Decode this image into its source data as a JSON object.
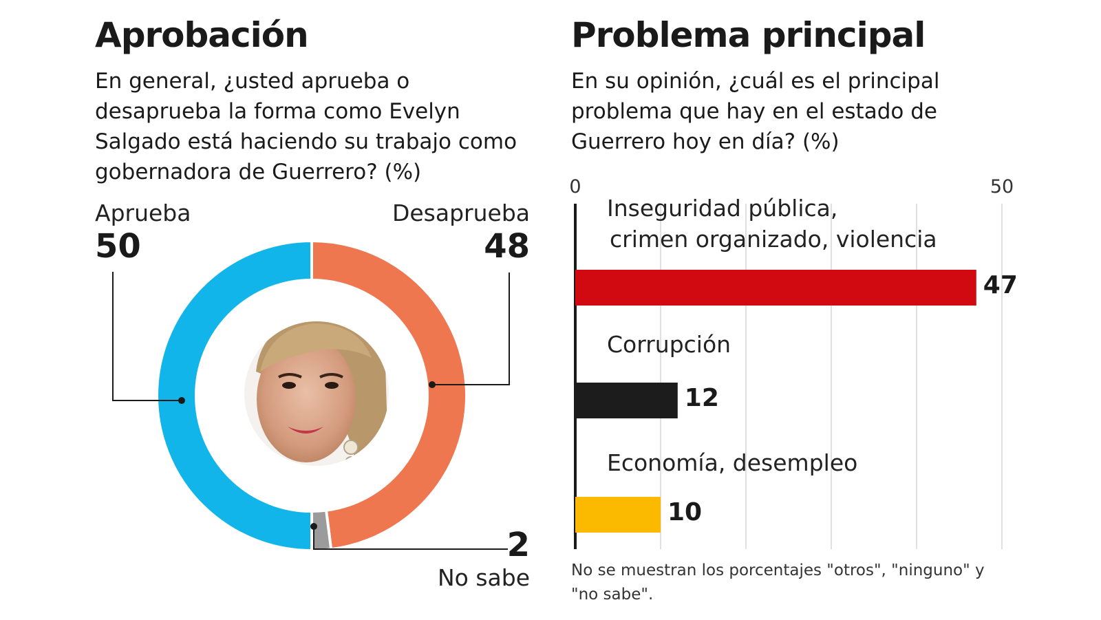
{
  "left": {
    "title": "Aprobación",
    "question": "En general, ¿usted aprueba o desaprueba la forma como Evelyn Salgado está haciendo su trabajo como gobernadora de Guerrero? (%)"
  },
  "right": {
    "title": "Problema principal",
    "question": "En su opinión, ¿cuál es el principal problema que hay en el estado de Guerrero hoy en día? (%)",
    "footnote": "No se muestran los porcentajes \"otros\", \"ninguno\" y \"no sabe\"."
  },
  "chart_data": [
    {
      "type": "pie",
      "style": "donut",
      "title": "Aprobación",
      "slices": [
        {
          "label": "Desaprueba",
          "value": 48,
          "value_label": "48",
          "color": "#EE774F"
        },
        {
          "label": "No sabe",
          "value": 2,
          "value_label": "2",
          "color": "#9B9B9B"
        },
        {
          "label": "Aprueba",
          "value": 50,
          "value_label": "50",
          "color": "#12B5EA"
        }
      ],
      "center_image": "portrait-photo"
    },
    {
      "type": "bar",
      "orientation": "horizontal",
      "title": "Problema principal",
      "categories": [
        "Inseguridad pública, crimen organizado, violencia",
        "Corrupción",
        "Economía, desempleo"
      ],
      "category_lines": [
        [
          "Inseguridad pública,",
          "crimen organizado, violencia"
        ],
        [
          "Corrupción"
        ],
        [
          "Economía, desempleo"
        ]
      ],
      "values": [
        47,
        12,
        10
      ],
      "value_labels": [
        "47",
        "12",
        "10"
      ],
      "colors": [
        "#D10A11",
        "#1C1C1C",
        "#FBB900"
      ],
      "xlim": [
        0,
        50
      ],
      "tick_labels": [
        "0",
        "50"
      ],
      "gridlines": [
        0,
        10,
        20,
        30,
        40,
        50
      ],
      "grid": true
    }
  ]
}
